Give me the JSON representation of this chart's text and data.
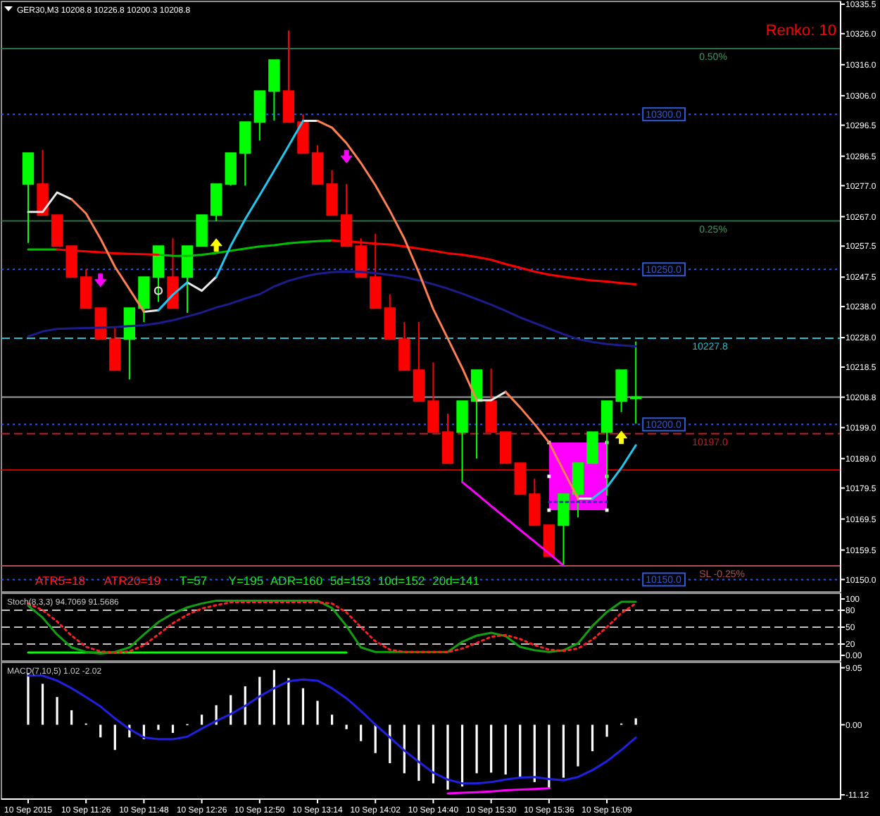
{
  "chart_data": [
    {
      "type": "candlestick",
      "title": "GER30,M3 10208.8 10226.8 10200.3 10208.8",
      "subtitle": "Renko: 10",
      "categories": [
        null,
        null,
        null,
        null,
        null,
        null,
        null,
        null,
        null,
        null,
        null,
        null,
        null,
        null,
        null,
        null,
        null,
        null,
        null,
        null,
        null,
        null,
        null,
        null,
        null,
        null,
        null,
        null,
        null,
        null,
        null,
        null,
        null,
        null,
        null,
        null,
        null,
        null,
        null,
        null,
        null,
        null,
        null
      ],
      "ohlc": [
        [
          10277.5,
          10287.5,
          10258.5,
          10287.5
        ],
        [
          10277.5,
          10288.5,
          10267.5,
          10267.5
        ],
        [
          10267.5,
          10267.5,
          10257.5,
          10257.5
        ],
        [
          10257.5,
          10257.5,
          10247.5,
          10247.5
        ],
        [
          10247.5,
          10250,
          10237.5,
          10237.5
        ],
        [
          10237.5,
          10237.5,
          10227.5,
          10227.5
        ],
        [
          10227.5,
          10231.5,
          10217.5,
          10217.5
        ],
        [
          10227.5,
          10237.5,
          10214.5,
          10237.5
        ],
        [
          10237.5,
          10247.5,
          10233,
          10247.5
        ],
        [
          10247.5,
          10257.5,
          10239.5,
          10257.5
        ],
        [
          10247.5,
          10260,
          10237.5,
          10237.5
        ],
        [
          10247.5,
          10257.5,
          10236,
          10257.5
        ],
        [
          10257.5,
          10267.5,
          10257.5,
          10267.5
        ],
        [
          10267.5,
          10277.5,
          10265.5,
          10277.5
        ],
        [
          10277.5,
          10287.5,
          10277,
          10287.5
        ],
        [
          10287.5,
          10297.5,
          10277,
          10297.5
        ],
        [
          10297.5,
          10307.5,
          10291.5,
          10307.5
        ],
        [
          10307.5,
          10317.5,
          10298,
          10317.5
        ],
        [
          10307.5,
          10327,
          10297.5,
          10297.5
        ],
        [
          10297.5,
          10300,
          10287.5,
          10287.5
        ],
        [
          10287.5,
          10290,
          10277.5,
          10277.5
        ],
        [
          10277.5,
          10282,
          10267.5,
          10267.5
        ],
        [
          10267.5,
          10277.5,
          10257.5,
          10257.5
        ],
        [
          10257.5,
          10260,
          10247.5,
          10247.5
        ],
        [
          10247.5,
          10261.5,
          10237.5,
          10237.5
        ],
        [
          10237.5,
          10242,
          10227.5,
          10227.5
        ],
        [
          10227.5,
          10233,
          10217.5,
          10217.5
        ],
        [
          10217.5,
          10233,
          10207.5,
          10207.5
        ],
        [
          10207.5,
          10220,
          10197.5,
          10197.5
        ],
        [
          10197.5,
          10203.5,
          10187.5,
          10187.5
        ],
        [
          10197.5,
          10207.5,
          10181.5,
          10207.5
        ],
        [
          10207.5,
          10217.5,
          10189,
          10217.5
        ],
        [
          10207.5,
          10218,
          10197.5,
          10197.5
        ],
        [
          10197.5,
          10197.5,
          10187.5,
          10187.5
        ],
        [
          10187.5,
          10187.5,
          10177.5,
          10177.5
        ],
        [
          10177.5,
          10182.5,
          10167.5,
          10167.5
        ],
        [
          10167.5,
          10167.5,
          10157.5,
          10157.5
        ],
        [
          10167.5,
          10177.5,
          10154.5,
          10177.5
        ],
        [
          10177.5,
          10187.5,
          10170,
          10187.5
        ],
        [
          10187.5,
          10197.5,
          10187.5,
          10197.5
        ],
        [
          10197.5,
          10207.5,
          10177,
          10207.5
        ],
        [
          10207.5,
          10217.5,
          10204,
          10217.5
        ],
        [
          10208.8,
          10226.8,
          10200.3,
          10208.8
        ]
      ],
      "colors": [
        "#00ff00",
        "#ff0000",
        "#ff0000",
        "#ff0000",
        "#ff0000",
        "#ff0000",
        "#ff0000",
        "#00ff00",
        "#00ff00",
        "#00ff00",
        "#ff0000",
        "#00ff00",
        "#00ff00",
        "#00ff00",
        "#00ff00",
        "#00ff00",
        "#00ff00",
        "#00ff00",
        "#ff0000",
        "#ff0000",
        "#ff0000",
        "#ff0000",
        "#ff0000",
        "#ff0000",
        "#ff0000",
        "#ff0000",
        "#ff0000",
        "#ff0000",
        "#ff0000",
        "#ff0000",
        "#00ff00",
        "#00ff00",
        "#ff0000",
        "#ff0000",
        "#ff0000",
        "#ff0000",
        "#ff0000",
        "#00ff00",
        "#00ff00",
        "#00ff00",
        "#00ff00",
        "#00ff00",
        "#00ff00"
      ],
      "ylim": [
        10146,
        10336.4
      ],
      "yticks": [
        10335.5,
        {
          "value": 10326,
          "label": "10326.0"
        },
        {
          "value": 10316,
          "label": "10316.0"
        },
        {
          "value": 10306,
          "label": "10306.0"
        },
        10296.5,
        10286.5,
        {
          "value": 10277,
          "label": "10277.0"
        },
        {
          "value": 10267,
          "label": "10267.0"
        },
        10257.5,
        10247.5,
        {
          "value": 10238,
          "label": "10238.0"
        },
        {
          "value": 10228,
          "label": "10228.0"
        },
        10218.5,
        10208.8,
        {
          "value": 10199,
          "label": "10199.0"
        },
        {
          "value": 10189,
          "label": "10189.0"
        },
        10179.5,
        10169.5,
        10159.5,
        {
          "value": 10150,
          "label": "10150.0"
        }
      ],
      "tick_labels": "y",
      "series": [
        {
          "type": "line",
          "color": "#3030b8",
          "line_style": "dotted",
          "values": [
            null,
            null,
            null,
            null,
            null,
            null,
            null,
            null,
            null,
            null,
            null,
            null,
            null,
            null,
            null,
            null,
            null,
            null,
            null,
            null,
            null,
            null,
            null,
            null,
            null,
            null,
            null,
            null,
            null,
            null,
            null,
            null,
            null,
            null,
            null,
            null,
            10175.0,
            10175.0,
            10175.0,
            10175.0,
            10175.0,
            null,
            null
          ]
        },
        {
          "type": "line",
          "color": "#00c000",
          "values": [
            10256.4,
            10256.4,
            10256.4,
            null,
            null,
            null,
            null,
            null,
            null,
            10254.7,
            10254.4,
            10254.3,
            10254.7,
            10255.3,
            10256.0,
            10256.7,
            10257.4,
            10257.8,
            10258.4,
            10258.8,
            10259.1,
            10259.3,
            null,
            null,
            null,
            null,
            null,
            null,
            null,
            null,
            null,
            null,
            null,
            null,
            null,
            null,
            null,
            null,
            null,
            null,
            null,
            null,
            null
          ]
        },
        {
          "type": "line",
          "color": "#ff0000",
          "values": [
            null,
            null,
            10256.4,
            10256.1,
            10255.8,
            10255.5,
            10255.2,
            10255.0,
            10254.9,
            10254.7,
            null,
            null,
            null,
            null,
            null,
            null,
            null,
            null,
            null,
            null,
            null,
            10259.3,
            10259.0,
            10258.7,
            10258.3,
            10258.0,
            10257.4,
            10256.7,
            10256.0,
            10255.2,
            10254.7,
            10254.0,
            10253.1,
            10251.7,
            10250.5,
            10249.3,
            10248.3,
            10247.6,
            10247.0,
            10246.4,
            10246.1,
            10245.6,
            10245.2
          ]
        },
        {
          "type": "line",
          "color": "#1c1c8c",
          "values": [
            10228.4,
            10230.0,
            10230.8,
            10231.0,
            10231.1,
            10231.2,
            10231.4,
            10231.7,
            10232.0,
            10232.7,
            10233.6,
            10234.8,
            10236.1,
            10237.7,
            10239.0,
            10240.6,
            10242.0,
            10244.5,
            10246.3,
            10247.6,
            10248.6,
            10249.1,
            10249.3,
            10249.2,
            10248.8,
            10248.2,
            10247.5,
            10246.5,
            10245.2,
            10243.8,
            10242.2,
            10240.4,
            10238.6,
            10236.6,
            10234.5,
            10232.7,
            10230.9,
            10229.1,
            10227.5,
            10226.6,
            10225.9,
            10225.5,
            10225.2
          ]
        },
        {
          "type": "line",
          "color": "#e8e8e8",
          "values": [
            10268.5,
            10268.5,
            10274.8,
            10272.6,
            null,
            null,
            null,
            null,
            10236.3,
            10236.8,
            null,
            10245.8,
            10243.1,
            10247.6,
            null,
            null,
            null,
            null,
            null,
            10297.9,
            10297.9,
            null,
            null,
            null,
            null,
            null,
            null,
            null,
            null,
            null,
            null,
            10207.8,
            10207.8,
            10210.5,
            null,
            null,
            null,
            null,
            10176.1,
            10176.1,
            null,
            null,
            null
          ]
        },
        {
          "type": "line",
          "color": "#ff7f50",
          "values": [
            null,
            null,
            null,
            10272.6,
            10268.0,
            10259.9,
            10250.8,
            10243.6,
            10236.3,
            null,
            null,
            null,
            null,
            null,
            null,
            null,
            null,
            null,
            null,
            null,
            10297.9,
            10295.7,
            10290.7,
            10284.3,
            10277.1,
            10268.9,
            10259.9,
            10249.0,
            10237.2,
            10227.7,
            10218.2,
            10207.8,
            null,
            10210.5,
            10205.5,
            10200.1,
            10194.2,
            10185.1,
            10176.1,
            null,
            null,
            null,
            null
          ]
        },
        {
          "type": "line",
          "color": "#20c8f0",
          "values": [
            null,
            null,
            null,
            null,
            null,
            null,
            null,
            null,
            null,
            10236.8,
            10241.8,
            10245.8,
            null,
            10247.6,
            10257.6,
            10266.2,
            10273.9,
            10281.8,
            10289.8,
            10297.9,
            null,
            null,
            null,
            null,
            null,
            null,
            null,
            null,
            null,
            null,
            null,
            null,
            null,
            null,
            null,
            null,
            null,
            null,
            null,
            10176.1,
            10179.7,
            10186.0,
            10193.3
          ]
        },
        {
          "type": "line",
          "color": "#ff00ff",
          "values": [
            null,
            null,
            null,
            null,
            null,
            null,
            null,
            null,
            null,
            null,
            null,
            null,
            null,
            null,
            null,
            null,
            null,
            null,
            null,
            null,
            null,
            null,
            null,
            null,
            null,
            null,
            null,
            null,
            null,
            null,
            10181.4,
            10177.6,
            10173.7,
            10169.9,
            10166.0,
            10162.2,
            10158.4,
            10154.5,
            null,
            null,
            null,
            null,
            null
          ]
        },
        {
          "type": "scatter",
          "color": "#ffff00",
          "marker": "triangle",
          "values": [
            null,
            null,
            null,
            null,
            null,
            null,
            null,
            null,
            null,
            null,
            null,
            null,
            null,
            10257.6,
            null,
            null,
            null,
            null,
            null,
            null,
            null,
            null,
            null,
            null,
            null,
            null,
            null,
            null,
            null,
            null,
            null,
            null,
            null,
            null,
            null,
            null,
            null,
            null,
            null,
            null,
            null,
            10195.6,
            null
          ]
        },
        {
          "type": "scatter",
          "color": "#ff00ff",
          "marker": "triangle",
          "values": [
            null,
            null,
            null,
            null,
            null,
            10246.7,
            null,
            null,
            null,
            null,
            null,
            null,
            null,
            null,
            null,
            null,
            null,
            null,
            null,
            null,
            null,
            null,
            10286.6,
            null,
            null,
            null,
            null,
            null,
            null,
            null,
            null,
            null,
            null,
            null,
            null,
            null,
            null,
            null,
            null,
            null,
            null,
            null,
            null
          ]
        },
        {
          "type": "scatter",
          "color": "#d8d8d8",
          "marker": "circle",
          "values": [
            null,
            null,
            null,
            null,
            null,
            null,
            null,
            null,
            null,
            10243.1,
            null,
            null,
            null,
            null,
            null,
            null,
            null,
            null,
            null,
            null,
            null,
            null,
            null,
            null,
            null,
            null,
            null,
            null,
            null,
            null,
            null,
            null,
            null,
            null,
            null,
            null,
            null,
            null,
            null,
            null,
            null,
            null,
            null
          ]
        }
      ],
      "ref_lines": [
        {
          "axis": "y",
          "value": 10321.2,
          "color": "#2a7048"
        },
        {
          "axis": "y",
          "value": 10300,
          "label": "10300.0",
          "color": "#2f5ad8",
          "line_style": "dotted"
        },
        {
          "axis": "y",
          "value": 10265.6,
          "color": "#2a7048"
        },
        {
          "axis": "y",
          "value": 10250,
          "label": "10250.0",
          "color": "#2f5ad8",
          "line_style": "dotted"
        },
        {
          "axis": "y",
          "value": 10227.8,
          "label": "10227.8",
          "color": "#20c0d0",
          "line_style": "dashed"
        },
        {
          "axis": "y",
          "value": 10208.8,
          "color": "#a0a0a0"
        },
        {
          "axis": "y",
          "value": 10200,
          "label": "10200.0",
          "color": "#2f5ad8",
          "line_style": "dotted"
        },
        {
          "axis": "y",
          "value": 10197,
          "label": "10197.0",
          "color": "#c02020",
          "line_style": "dashed"
        },
        {
          "axis": "y",
          "value": 10185.3,
          "color": "#c00000"
        },
        {
          "axis": "y",
          "value": 10154.4,
          "color": "#b05050"
        },
        {
          "axis": "y",
          "value": 10150,
          "label": "10150.0",
          "color": "#2f5ad8",
          "line_style": "dotted"
        }
      ],
      "annotations": [
        "ATR5=18",
        "ATR20=19",
        "T=57",
        "Y=195 ADR=160 5d=153 10d=152 20d=141",
        {
          "text": "0.50%",
          "y": 10321.2
        },
        {
          "text": "0.25%",
          "y": 10265.6
        },
        {
          "text": "SL -0.25%",
          "y": 10154.4
        }
      ]
    },
    {
      "type": "line",
      "title": "Stoch(8,3,3) 94.7069 91.5686",
      "categories": [
        null,
        null,
        null,
        null,
        null,
        null,
        null,
        null,
        null,
        null,
        null,
        null,
        null,
        null,
        null,
        null,
        null,
        null,
        null,
        null,
        null,
        null,
        null,
        null,
        null,
        null,
        null,
        null,
        null,
        null,
        null,
        null,
        null,
        null,
        null,
        null,
        null,
        null,
        null,
        null,
        null,
        null,
        null
      ],
      "ylim": [
        -10,
        110
      ],
      "yticks": [
        100,
        80,
        50,
        20,
        {
          "value": 0,
          "label": "0.00"
        }
      ],
      "tick_labels": "y",
      "series": [
        {
          "color": "#00ff00",
          "values": [
            5,
            5,
            5,
            5,
            5,
            5,
            5,
            5,
            5,
            5,
            5,
            5,
            5,
            5,
            5,
            5,
            5,
            5,
            5,
            5,
            5,
            5,
            5,
            null,
            null,
            null,
            null,
            null,
            null,
            null,
            null,
            null,
            null,
            null,
            null,
            null,
            null,
            null,
            null,
            null,
            null,
            null,
            null
          ]
        },
        {
          "color": "#10a010",
          "values": [
            88,
            67,
            37,
            14,
            6,
            3,
            6,
            14,
            37,
            59,
            74,
            85,
            92,
            97,
            97,
            97,
            97,
            97,
            97,
            97,
            97,
            84,
            52,
            14,
            6,
            6,
            6,
            6,
            6,
            6,
            24,
            35,
            40,
            34,
            15,
            9,
            6,
            9,
            21,
            52,
            77,
            95,
            95
          ]
        },
        {
          "color": "#ff2020",
          "line_style": "dotted",
          "values": [
            92,
            80,
            60,
            35,
            15,
            7,
            5,
            7,
            18,
            37,
            57,
            72,
            83,
            89,
            94,
            94,
            94,
            94,
            94,
            94,
            94,
            92,
            76,
            50,
            25,
            10,
            6,
            6,
            6,
            6,
            12,
            22,
            33,
            36,
            29,
            18,
            10,
            8,
            12,
            28,
            50,
            75,
            92
          ]
        }
      ],
      "ref_lines": [
        {
          "axis": "y",
          "value": 80,
          "color": "#c0c0c0",
          "line_style": "dashed"
        },
        {
          "axis": "y",
          "value": 50,
          "color": "#c0c0c0",
          "line_style": "dashed"
        },
        {
          "axis": "y",
          "value": 20,
          "color": "#c0c0c0",
          "line_style": "dashed"
        }
      ]
    },
    {
      "type": "bar",
      "title": "MACD(7,10,5) 1.02 -2.02",
      "categories": [
        "10 Sep 2015",
        null,
        null,
        null,
        "10 Sep 11:26",
        null,
        null,
        null,
        "10 Sep 11:48",
        null,
        null,
        null,
        "10 Sep 12:26",
        null,
        null,
        null,
        "10 Sep 12:50",
        null,
        null,
        null,
        "10 Sep 13:14",
        null,
        null,
        null,
        "10 Sep 14:02",
        null,
        null,
        null,
        "10 Sep 14:40",
        null,
        null,
        null,
        "10 Sep 15:30",
        null,
        null,
        null,
        "10 Sep 15:36",
        null,
        null,
        null,
        "10 Sep 16:09",
        null,
        null
      ],
      "ylim": [
        -11.8,
        9.9
      ],
      "yticks": [
        9.05,
        {
          "value": 0,
          "label": "0.00"
        },
        -11.12
      ],
      "series": [
        {
          "type": "bar",
          "color": "#ffffff",
          "values": [
            8.1,
            6.5,
            4.4,
            2.3,
            0.2,
            -2.0,
            -4.0,
            -2.0,
            -2.3,
            -0.8,
            -1.3,
            0.1,
            1.6,
            3.1,
            4.7,
            6.1,
            7.6,
            8.7,
            7.4,
            5.8,
            3.8,
            1.6,
            -0.7,
            -2.6,
            -4.5,
            -6.1,
            -7.7,
            -8.9,
            -9.3,
            -10.3,
            -9.8,
            -7.7,
            -7.6,
            -7.9,
            -8.4,
            -9.1,
            -10.2,
            -8.4,
            -6.6,
            -4.2,
            -1.9,
            0.2,
            1.02
          ]
        },
        {
          "type": "line",
          "color": "#2020e0",
          "values": [
            7.8,
            7.8,
            7.0,
            5.8,
            4.4,
            2.9,
            1.0,
            -0.7,
            -2.0,
            -2.3,
            -2.3,
            -1.9,
            -0.6,
            0.6,
            1.7,
            3.0,
            4.5,
            5.8,
            6.9,
            7.2,
            7.0,
            5.8,
            4.2,
            2.2,
            0.0,
            -2.0,
            -4.1,
            -5.9,
            -7.6,
            -8.7,
            -9.3,
            -9.3,
            -9.1,
            -8.7,
            -8.4,
            -8.3,
            -8.6,
            -8.8,
            -8.3,
            -7.2,
            -5.8,
            -4.0,
            -2.02
          ]
        },
        {
          "type": "line",
          "color": "#ff00ff",
          "values": [
            null,
            null,
            null,
            null,
            null,
            null,
            null,
            null,
            null,
            null,
            null,
            null,
            null,
            null,
            null,
            null,
            null,
            null,
            null,
            null,
            null,
            null,
            null,
            null,
            null,
            null,
            null,
            null,
            null,
            -10.9,
            -10.8,
            -10.7,
            -10.6,
            -10.4,
            -10.3,
            -10.2,
            -10.1,
            null,
            null,
            null,
            null,
            null,
            null
          ]
        }
      ]
    }
  ]
}
